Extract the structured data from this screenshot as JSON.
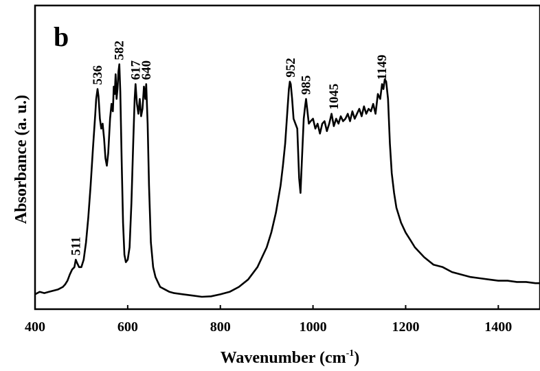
{
  "chart_data": {
    "type": "line",
    "panel_label": "b",
    "xlabel_main": "Wavenumber (cm",
    "xlabel_sup": "-1",
    "xlabel_close": ")",
    "ylabel": "Absorbance (a. u.)",
    "xlim": [
      400,
      1490
    ],
    "ylim": [
      0,
      1
    ],
    "grid": false,
    "y_ticks_shown": false,
    "x_ticks": [
      400,
      600,
      800,
      1000,
      1200,
      1400
    ],
    "x_tick_labels": [
      "400",
      "600",
      "800",
      "1000",
      "1200",
      "1400"
    ],
    "series": [
      {
        "color": "#000000",
        "x": [
          400,
          410,
          420,
          430,
          440,
          450,
          460,
          465,
          470,
          475,
          480,
          485,
          488,
          490,
          495,
          500,
          505,
          510,
          515,
          520,
          525,
          530,
          532,
          535,
          537,
          540,
          543,
          546,
          549,
          552,
          555,
          558,
          562,
          565,
          568,
          570,
          572,
          574,
          576,
          578,
          580,
          582,
          584,
          587,
          590,
          593,
          596,
          600,
          604,
          608,
          612,
          615,
          617,
          620,
          623,
          626,
          629,
          632,
          635,
          638,
          640,
          643,
          646,
          650,
          655,
          660,
          665,
          670,
          680,
          690,
          700,
          720,
          740,
          760,
          780,
          800,
          820,
          840,
          860,
          880,
          900,
          910,
          920,
          930,
          935,
          940,
          945,
          948,
          950,
          952,
          955,
          958,
          962,
          966,
          970,
          973,
          976,
          980,
          983,
          985,
          988,
          991,
          995,
          1000,
          1005,
          1010,
          1015,
          1020,
          1025,
          1030,
          1035,
          1040,
          1045,
          1050,
          1055,
          1060,
          1065,
          1070,
          1075,
          1080,
          1085,
          1090,
          1095,
          1100,
          1105,
          1110,
          1115,
          1120,
          1125,
          1130,
          1135,
          1140,
          1145,
          1149,
          1152,
          1155,
          1158,
          1162,
          1166,
          1170,
          1175,
          1180,
          1190,
          1200,
          1210,
          1220,
          1240,
          1260,
          1280,
          1300,
          1320,
          1340,
          1360,
          1380,
          1400,
          1420,
          1440,
          1460,
          1480,
          1490
        ],
        "y": [
          0.01,
          0.02,
          0.015,
          0.02,
          0.025,
          0.03,
          0.04,
          0.05,
          0.065,
          0.09,
          0.11,
          0.12,
          0.15,
          0.14,
          0.12,
          0.12,
          0.15,
          0.22,
          0.32,
          0.45,
          0.6,
          0.74,
          0.8,
          0.84,
          0.81,
          0.72,
          0.68,
          0.7,
          0.64,
          0.56,
          0.53,
          0.58,
          0.72,
          0.78,
          0.75,
          0.85,
          0.82,
          0.9,
          0.8,
          0.84,
          0.91,
          0.94,
          0.83,
          0.55,
          0.3,
          0.17,
          0.14,
          0.15,
          0.2,
          0.38,
          0.63,
          0.8,
          0.86,
          0.78,
          0.74,
          0.8,
          0.73,
          0.76,
          0.85,
          0.8,
          0.86,
          0.7,
          0.45,
          0.22,
          0.12,
          0.08,
          0.06,
          0.04,
          0.03,
          0.02,
          0.015,
          0.01,
          0.005,
          0.0,
          0.002,
          0.01,
          0.02,
          0.04,
          0.07,
          0.12,
          0.2,
          0.26,
          0.34,
          0.45,
          0.53,
          0.62,
          0.76,
          0.84,
          0.87,
          0.86,
          0.8,
          0.72,
          0.7,
          0.68,
          0.48,
          0.42,
          0.55,
          0.72,
          0.77,
          0.8,
          0.75,
          0.7,
          0.71,
          0.72,
          0.68,
          0.7,
          0.66,
          0.7,
          0.71,
          0.67,
          0.7,
          0.74,
          0.69,
          0.72,
          0.7,
          0.73,
          0.71,
          0.72,
          0.74,
          0.71,
          0.75,
          0.72,
          0.74,
          0.76,
          0.73,
          0.77,
          0.74,
          0.76,
          0.75,
          0.78,
          0.74,
          0.82,
          0.8,
          0.86,
          0.84,
          0.88,
          0.87,
          0.8,
          0.62,
          0.5,
          0.42,
          0.36,
          0.3,
          0.26,
          0.23,
          0.2,
          0.16,
          0.13,
          0.12,
          0.1,
          0.09,
          0.08,
          0.075,
          0.07,
          0.065,
          0.065,
          0.06,
          0.06,
          0.055,
          0.055
        ]
      }
    ],
    "annotations": [
      {
        "text": "511",
        "x": 488,
        "y": 0.15
      },
      {
        "text": "536",
        "x": 535,
        "y": 0.84
      },
      {
        "text": "582",
        "x": 582,
        "y": 0.94
      },
      {
        "text": "617",
        "x": 617,
        "y": 0.86
      },
      {
        "text": "640",
        "x": 640,
        "y": 0.86
      },
      {
        "text": "952",
        "x": 952,
        "y": 0.87
      },
      {
        "text": "985",
        "x": 985,
        "y": 0.8
      },
      {
        "text": "1045",
        "x": 1045,
        "y": 0.74
      },
      {
        "text": "1149",
        "x": 1149,
        "y": 0.86
      }
    ]
  }
}
